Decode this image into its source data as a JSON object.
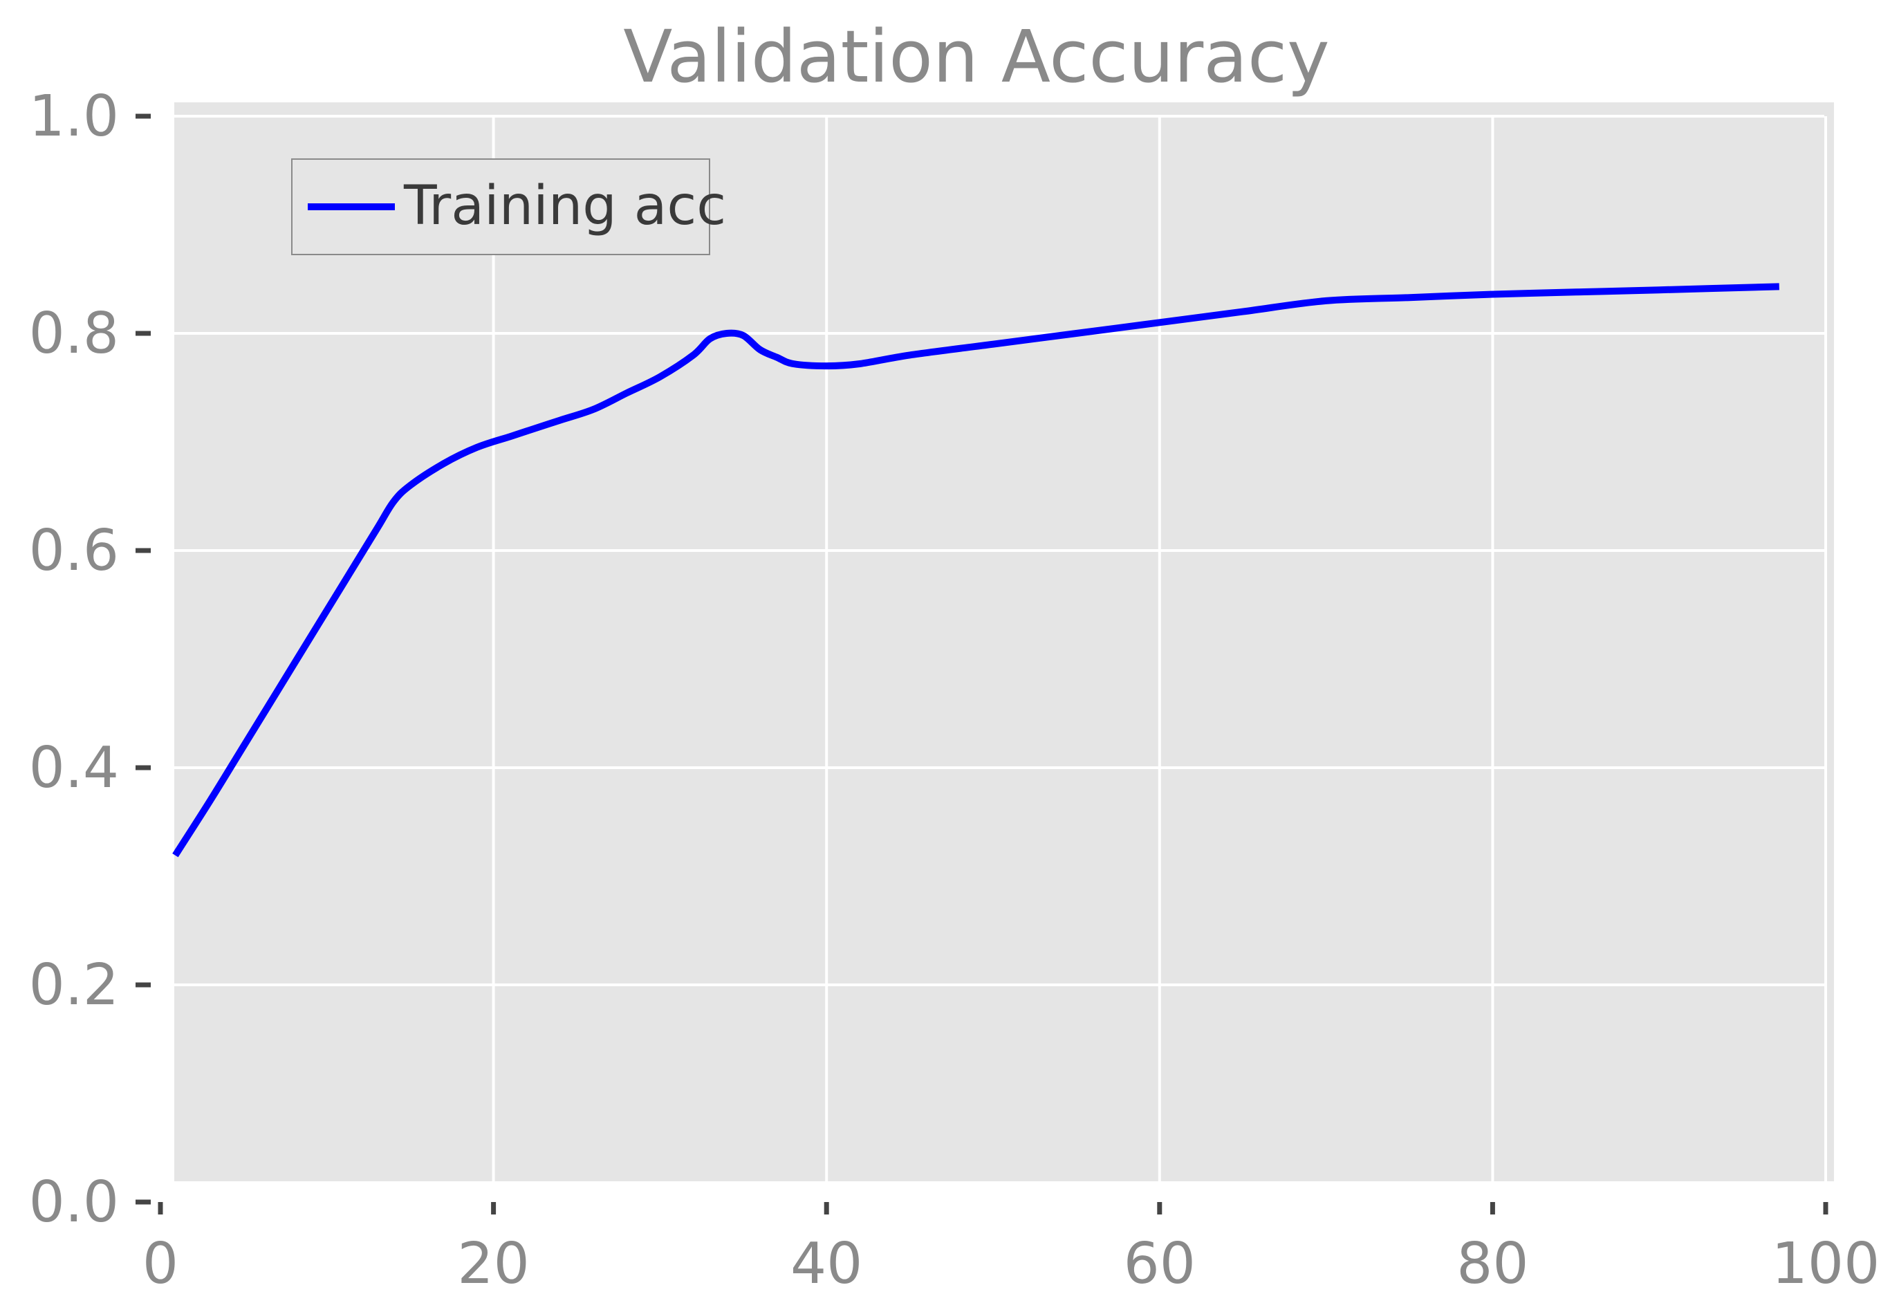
{
  "chart_data": {
    "type": "line",
    "title": "Validation Accuracy",
    "xlabel": "",
    "ylabel": "",
    "xlim": [
      0,
      100
    ],
    "ylim": [
      0.0,
      1.0
    ],
    "xticks": [
      0,
      20,
      40,
      60,
      80,
      100
    ],
    "xtick_labels": [
      "0",
      "20",
      "40",
      "60",
      "80",
      "100"
    ],
    "yticks": [
      0.0,
      0.2,
      0.4,
      0.6,
      0.8,
      1.0
    ],
    "ytick_labels": [
      "0.0",
      "0.2",
      "0.4",
      "0.6",
      "0.8",
      "1.0"
    ],
    "grid": true,
    "legend_position": "top-left",
    "series": [
      {
        "name": "Training acc",
        "color": "#0000ff",
        "x": [
          1,
          3,
          5,
          7,
          9,
          11,
          13,
          14,
          15,
          17,
          19,
          21,
          22,
          24,
          26,
          28,
          30,
          32,
          33,
          34,
          35,
          36,
          37,
          38,
          40,
          42,
          45,
          50,
          55,
          60,
          65,
          70,
          75,
          80,
          85,
          90,
          97
        ],
        "y": [
          0.322,
          0.37,
          0.42,
          0.47,
          0.52,
          0.57,
          0.62,
          0.645,
          0.66,
          0.68,
          0.695,
          0.705,
          0.71,
          0.72,
          0.73,
          0.745,
          0.76,
          0.78,
          0.795,
          0.8,
          0.798,
          0.785,
          0.778,
          0.772,
          0.77,
          0.772,
          0.78,
          0.79,
          0.8,
          0.81,
          0.82,
          0.83,
          0.833,
          0.836,
          0.838,
          0.84,
          0.843
        ]
      }
    ],
    "plot_background": "#e5e5e5",
    "grid_color": "#ffffff"
  }
}
